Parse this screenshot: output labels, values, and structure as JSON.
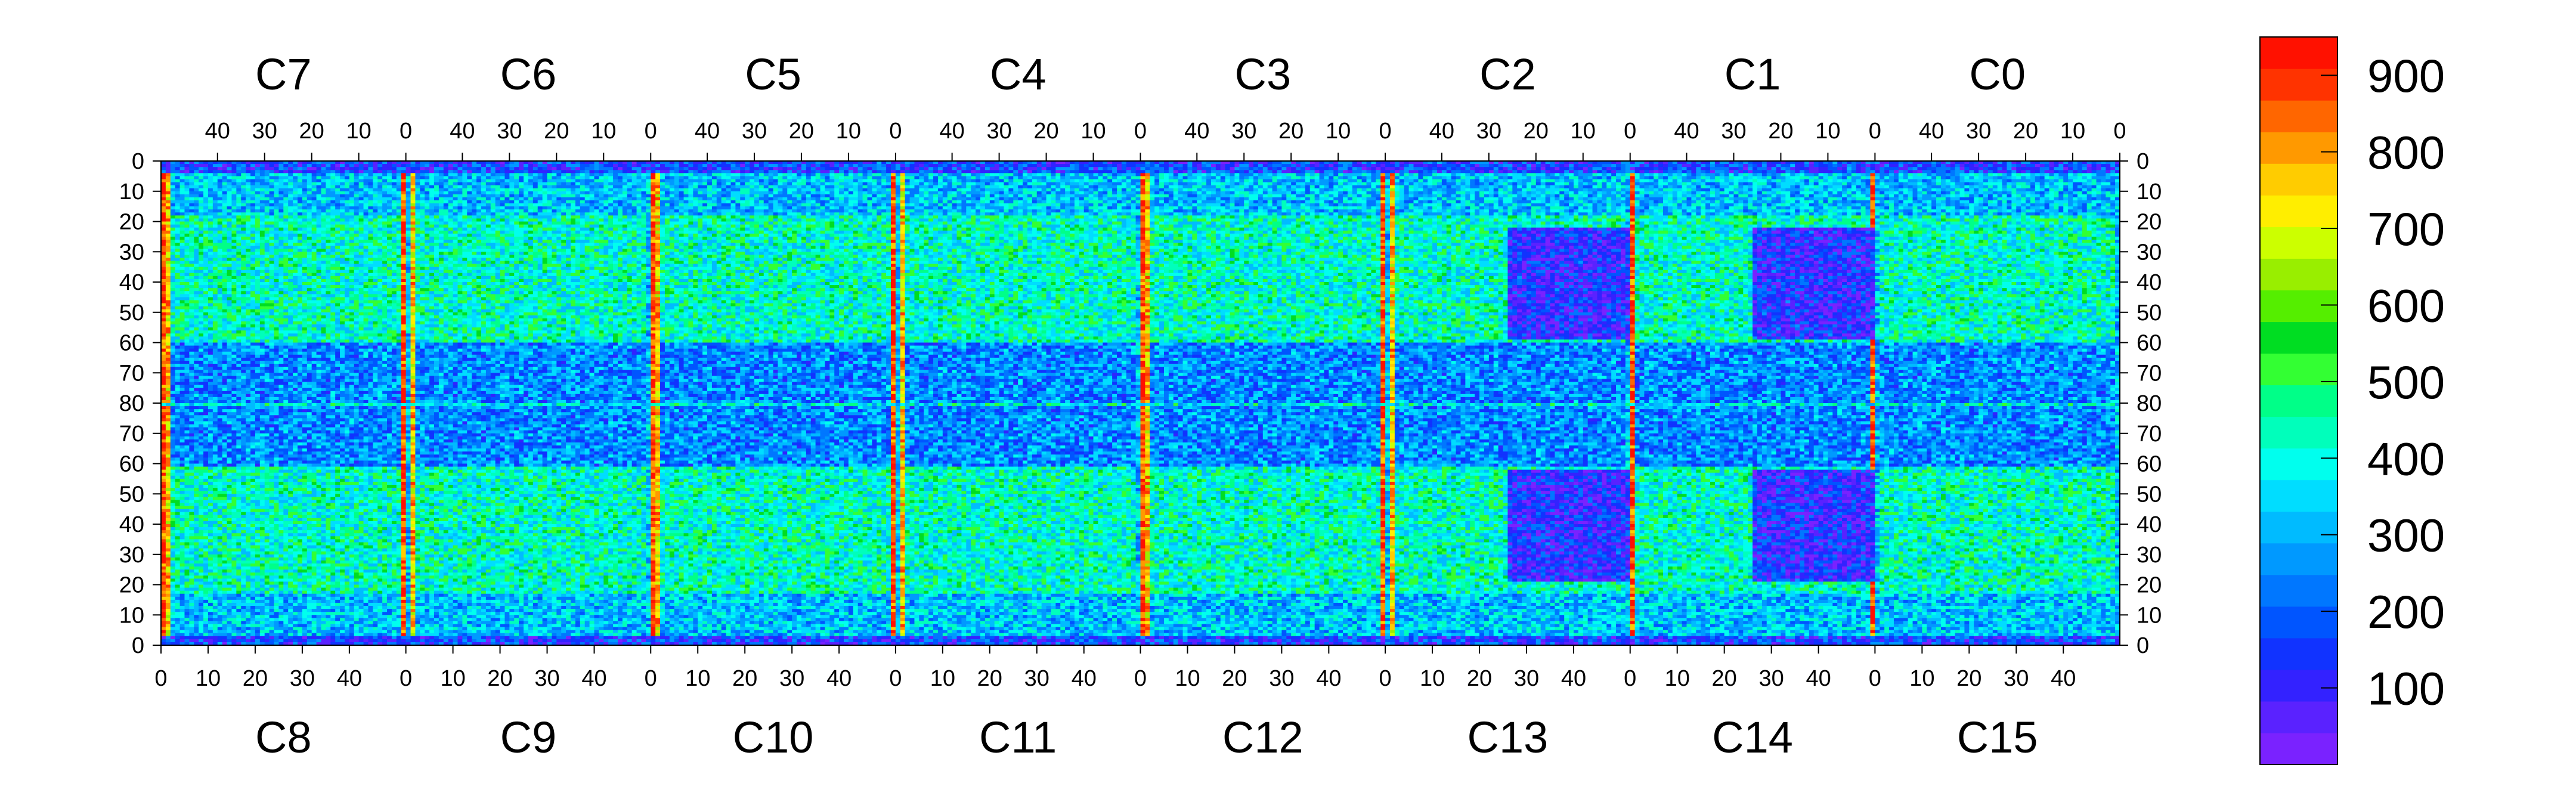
{
  "chart_data": {
    "type": "heatmap",
    "title": "",
    "top_chip_labels": [
      "C7",
      "C6",
      "C5",
      "C4",
      "C3",
      "C2",
      "C1",
      "C0"
    ],
    "bottom_chip_labels": [
      "C8",
      "C9",
      "C10",
      "C11",
      "C12",
      "C13",
      "C14",
      "C15"
    ],
    "columns_per_chip": 52,
    "rows_total": 160,
    "top_x_ticks": [
      {
        "col": 0,
        "label": "0"
      },
      {
        "col": 10,
        "label": "10"
      },
      {
        "col": 20,
        "label": "20"
      },
      {
        "col": 30,
        "label": "30"
      },
      {
        "col": 40,
        "label": "40"
      }
    ],
    "bottom_x_ticks": [
      {
        "col": 0,
        "label": "0"
      },
      {
        "col": 10,
        "label": "10"
      },
      {
        "col": 20,
        "label": "20"
      },
      {
        "col": 30,
        "label": "30"
      },
      {
        "col": 40,
        "label": "40"
      }
    ],
    "y_ticks": [
      {
        "row": 0,
        "label": "0"
      },
      {
        "row": 10,
        "label": "10"
      },
      {
        "row": 20,
        "label": "20"
      },
      {
        "row": 30,
        "label": "30"
      },
      {
        "row": 40,
        "label": "40"
      },
      {
        "row": 50,
        "label": "50"
      },
      {
        "row": 60,
        "label": "60"
      },
      {
        "row": 70,
        "label": "70"
      },
      {
        "row": 80,
        "label": "80"
      },
      {
        "row": 90,
        "label": "70"
      },
      {
        "row": 100,
        "label": "60"
      },
      {
        "row": 110,
        "label": "50"
      },
      {
        "row": 120,
        "label": "40"
      },
      {
        "row": 130,
        "label": "30"
      },
      {
        "row": 140,
        "label": "20"
      },
      {
        "row": 150,
        "label": "10"
      },
      {
        "row": 160,
        "label": "0"
      }
    ],
    "color_scale": {
      "min": 0,
      "max": 950,
      "tick_labels": [
        "100",
        "200",
        "300",
        "400",
        "500",
        "600",
        "700",
        "800",
        "900"
      ],
      "tick_values": [
        100,
        200,
        300,
        400,
        500,
        600,
        700,
        800,
        900
      ],
      "colors": [
        "#7a22ff",
        "#5a22ff",
        "#3322ff",
        "#1133ff",
        "#0055ff",
        "#0077ff",
        "#0099ff",
        "#00bbff",
        "#00ddff",
        "#00ffee",
        "#00ffbb",
        "#00ff88",
        "#33ff33",
        "#00dd22",
        "#55ee00",
        "#99ee00",
        "#ccff00",
        "#ffee00",
        "#ffcc00",
        "#ff9900",
        "#ff6600",
        "#ff3300",
        "#ff1100"
      ]
    },
    "regions": {
      "background_levels": [
        420,
        320,
        250
      ],
      "hot_column_level": 880,
      "low_level": 80
    }
  }
}
